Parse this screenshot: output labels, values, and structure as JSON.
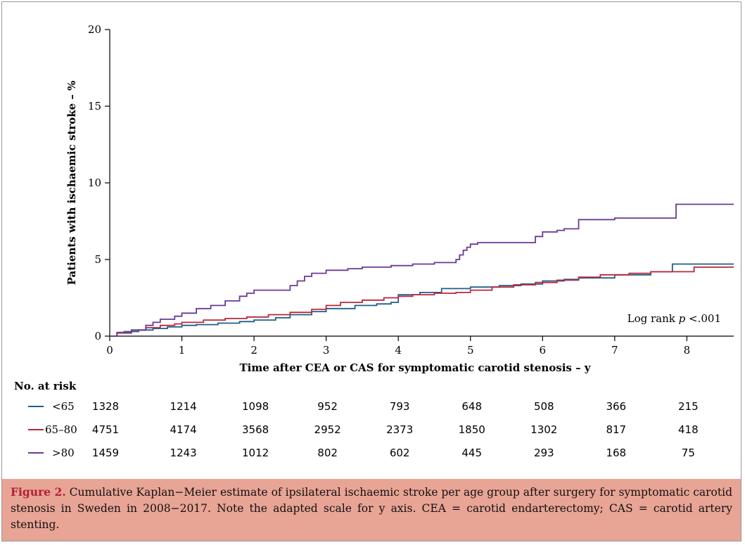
{
  "chart_data": {
    "type": "line",
    "step": true,
    "ylabel": "Patients with ischaemic stroke – %",
    "xlabel": "Time after CEA or CAS for symptomatic carotid stenosis – y",
    "xlim": [
      0,
      8.65
    ],
    "ylim": [
      0,
      20
    ],
    "xticks": [
      "0",
      "1",
      "2",
      "3",
      "4",
      "5",
      "6",
      "7",
      "8"
    ],
    "yticks": [
      "0",
      "5",
      "10",
      "15",
      "20"
    ],
    "annotation": {
      "prefix": "Log rank ",
      "variable": "p",
      "suffix": " <.001"
    },
    "series": [
      {
        "name": "<65",
        "color": "#1f5f8b",
        "x": [
          0,
          0.1,
          0.2,
          0.4,
          0.6,
          0.8,
          1.0,
          1.2,
          1.5,
          1.8,
          2.0,
          2.3,
          2.5,
          2.8,
          3.0,
          3.4,
          3.7,
          3.9,
          4.0,
          4.3,
          4.6,
          5.0,
          5.4,
          5.7,
          6.0,
          6.3,
          6.5,
          7.0,
          7.5,
          7.8,
          8.65
        ],
        "y": [
          0,
          0.2,
          0.3,
          0.4,
          0.5,
          0.6,
          0.7,
          0.75,
          0.85,
          0.95,
          1.05,
          1.2,
          1.4,
          1.6,
          1.8,
          2.0,
          2.1,
          2.2,
          2.7,
          2.85,
          3.1,
          3.2,
          3.3,
          3.4,
          3.6,
          3.7,
          3.8,
          4.0,
          4.2,
          4.7,
          4.7
        ]
      },
      {
        "name": "65–80",
        "color": "#b8283b",
        "x": [
          0,
          0.1,
          0.3,
          0.5,
          0.7,
          0.9,
          1.0,
          1.3,
          1.6,
          1.9,
          2.2,
          2.5,
          2.8,
          3.0,
          3.2,
          3.5,
          3.8,
          4.0,
          4.2,
          4.5,
          4.8,
          5.0,
          5.3,
          5.6,
          5.9,
          6.2,
          6.5,
          6.8,
          7.2,
          7.5,
          8.1,
          8.65
        ],
        "y": [
          0,
          0.25,
          0.4,
          0.55,
          0.7,
          0.8,
          0.9,
          1.05,
          1.15,
          1.25,
          1.4,
          1.55,
          1.75,
          2.0,
          2.2,
          2.35,
          2.5,
          2.6,
          2.7,
          2.8,
          2.85,
          3.0,
          3.2,
          3.35,
          3.5,
          3.65,
          3.85,
          4.0,
          4.1,
          4.2,
          4.5,
          4.5
        ]
      },
      {
        "name": ">80",
        "color": "#6a3a94",
        "x": [
          0,
          0.1,
          0.3,
          0.5,
          0.6,
          0.7,
          0.9,
          1.0,
          1.2,
          1.4,
          1.6,
          1.8,
          1.9,
          2.0,
          2.5,
          2.6,
          2.7,
          2.8,
          3.0,
          3.3,
          3.5,
          3.9,
          4.2,
          4.5,
          4.8,
          4.85,
          4.9,
          4.95,
          5.0,
          5.1,
          5.2,
          5.5,
          5.9,
          6.0,
          6.2,
          6.3,
          6.5,
          7.0,
          7.5,
          7.8,
          7.85,
          8.65
        ],
        "y": [
          0,
          0.2,
          0.4,
          0.7,
          0.9,
          1.1,
          1.3,
          1.5,
          1.8,
          2.0,
          2.3,
          2.6,
          2.8,
          3.0,
          3.3,
          3.6,
          3.9,
          4.1,
          4.3,
          4.4,
          4.5,
          4.6,
          4.7,
          4.8,
          5.0,
          5.3,
          5.6,
          5.8,
          6.0,
          6.1,
          6.1,
          6.1,
          6.5,
          6.8,
          6.9,
          7.0,
          7.6,
          7.7,
          7.7,
          7.7,
          8.6,
          8.6
        ]
      }
    ],
    "risk_table": {
      "title": "No. at risk",
      "rows": [
        {
          "label": "<65",
          "color": "#1f5f8b",
          "values": [
            "1328",
            "1214",
            "1098",
            "952",
            "793",
            "648",
            "508",
            "366",
            "215"
          ]
        },
        {
          "label": "65–80",
          "color": "#b8283b",
          "values": [
            "4751",
            "4174",
            "3568",
            "2952",
            "2373",
            "1850",
            "1302",
            "817",
            "418"
          ]
        },
        {
          "label": ">80",
          "color": "#6a3a94",
          "values": [
            "1459",
            "1243",
            "1012",
            "802",
            "602",
            "445",
            "293",
            "168",
            "75"
          ]
        }
      ]
    }
  },
  "caption": {
    "label": "Figure 2.",
    "text": " Cumulative Kaplan−Meier estimate of ipsilateral ischaemic stroke per age group after surgery for symptomatic carotid stenosis in Sweden in 2008−2017. Note the adapted scale for y axis. CEA = carotid endarterectomy; CAS = carotid artery stenting."
  }
}
